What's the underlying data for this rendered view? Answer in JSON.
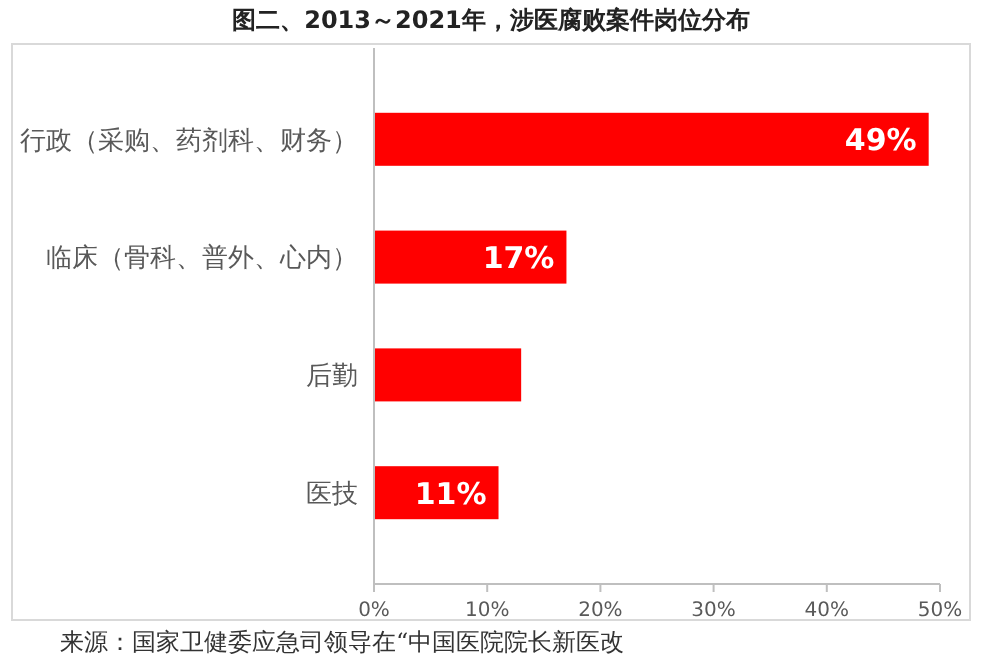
{
  "chart_data": {
    "type": "bar",
    "orientation": "horizontal",
    "title": "图二、2013～2021年，涉医腐败案件岗位分布",
    "categories": [
      "行政（采购、药剂科、财务）",
      "临床（骨科、普外、心内）",
      "后勤",
      "医技"
    ],
    "values": [
      49,
      17,
      13,
      11
    ],
    "color": "#ff0000",
    "value_labels": [
      "49%",
      "17%",
      null,
      "11%"
    ],
    "xlim": [
      0,
      50
    ],
    "xticks": [
      {
        "value": 0,
        "label": "0%"
      },
      {
        "value": 10,
        "label": "10%"
      },
      {
        "value": 20,
        "label": "20%"
      },
      {
        "value": 30,
        "label": "30%"
      },
      {
        "value": 40,
        "label": "40%"
      },
      {
        "value": 50,
        "label": "50%"
      }
    ],
    "grid": false,
    "annotations": [
      "来源：国家卫健委应急司领导在“中国医院院长新医改"
    ]
  }
}
